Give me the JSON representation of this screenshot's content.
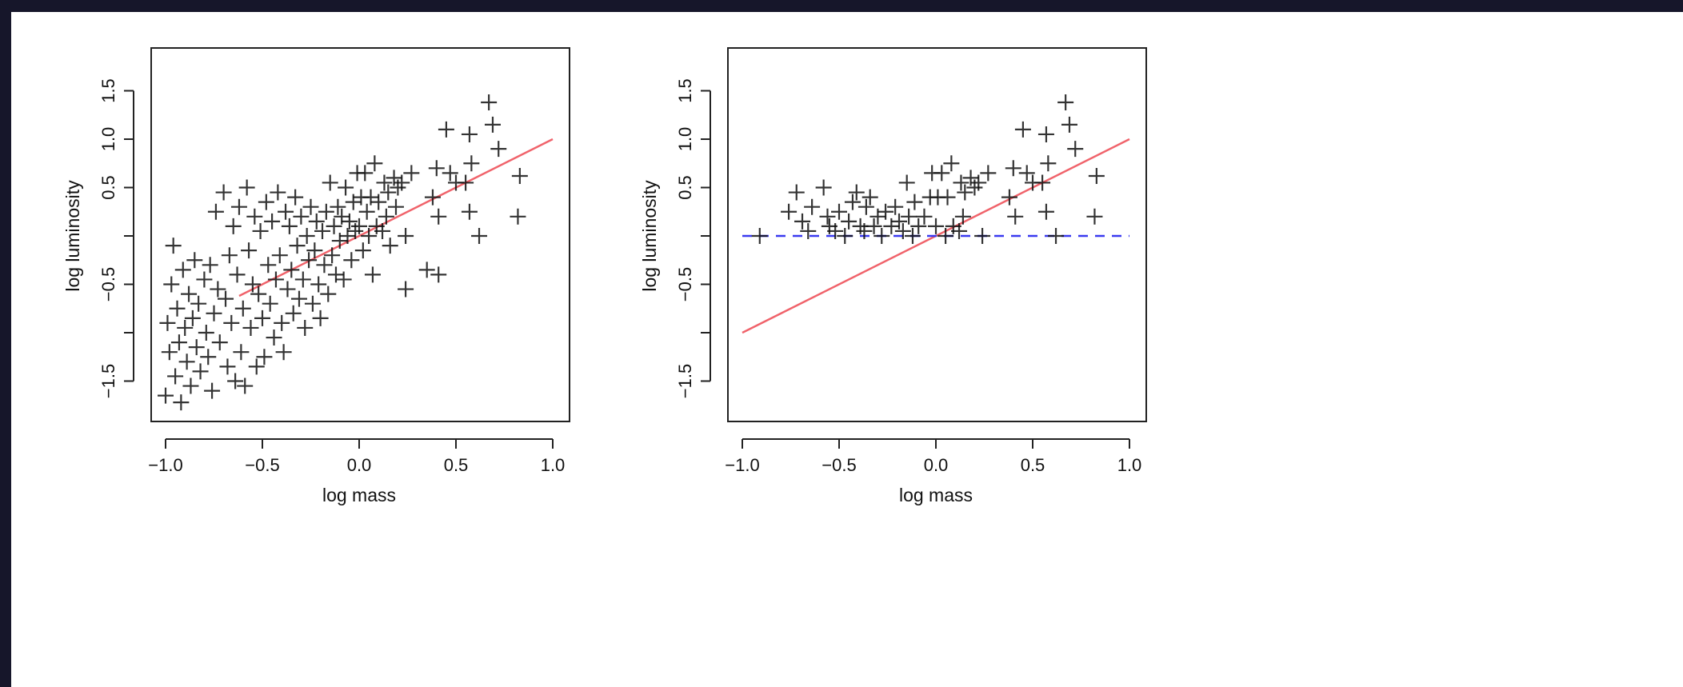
{
  "chart_data": [
    {
      "type": "scatter",
      "xlabel": "log mass",
      "ylabel": "log luminosity",
      "xlim": [
        -1.0,
        1.0
      ],
      "ylim": [
        -1.9,
        1.9
      ],
      "xticks": [
        -1.0,
        -0.5,
        0.0,
        0.5,
        1.0
      ],
      "xtick_labels": [
        "−1.0",
        "−0.5",
        "0.0",
        "0.5",
        "1.0"
      ],
      "yticks": [
        -1.5,
        -1.0,
        -0.5,
        0.0,
        0.5,
        1.0,
        1.5
      ],
      "ytick_labels": [
        "−1.5",
        "",
        "−0.5",
        "",
        "0.5",
        "1.0",
        "1.5"
      ],
      "grid": false,
      "marker": "+",
      "points": [
        [
          -1.0,
          -1.65
        ],
        [
          -0.98,
          -1.2
        ],
        [
          -0.99,
          -0.9
        ],
        [
          -0.97,
          -0.5
        ],
        [
          -0.96,
          -0.1
        ],
        [
          -0.95,
          -1.45
        ],
        [
          -0.94,
          -0.75
        ],
        [
          -0.93,
          -1.1
        ],
        [
          -0.92,
          -1.72
        ],
        [
          -0.91,
          -0.35
        ],
        [
          -0.9,
          -0.95
        ],
        [
          -0.89,
          -1.3
        ],
        [
          -0.88,
          -0.6
        ],
        [
          -0.87,
          -1.55
        ],
        [
          -0.86,
          -0.85
        ],
        [
          -0.85,
          -0.25
        ],
        [
          -0.84,
          -1.15
        ],
        [
          -0.83,
          -0.7
        ],
        [
          -0.82,
          -1.4
        ],
        [
          -0.8,
          -0.45
        ],
        [
          -0.79,
          -1.0
        ],
        [
          -0.78,
          -1.25
        ],
        [
          -0.77,
          -0.3
        ],
        [
          -0.76,
          -1.6
        ],
        [
          -0.75,
          -0.8
        ],
        [
          -0.74,
          0.25
        ],
        [
          -0.73,
          -0.55
        ],
        [
          -0.72,
          -1.1
        ],
        [
          -0.7,
          0.45
        ],
        [
          -0.69,
          -0.65
        ],
        [
          -0.68,
          -1.35
        ],
        [
          -0.67,
          -0.2
        ],
        [
          -0.66,
          -0.9
        ],
        [
          -0.65,
          0.1
        ],
        [
          -0.64,
          -1.5
        ],
        [
          -0.63,
          -0.4
        ],
        [
          -0.62,
          0.3
        ],
        [
          -0.61,
          -1.2
        ],
        [
          -0.6,
          -0.75
        ],
        [
          -0.59,
          -1.55
        ],
        [
          -0.58,
          0.5
        ],
        [
          -0.57,
          -0.15
        ],
        [
          -0.56,
          -0.95
        ],
        [
          -0.55,
          -0.5
        ],
        [
          -0.54,
          0.2
        ],
        [
          -0.53,
          -1.35
        ],
        [
          -0.52,
          -0.6
        ],
        [
          -0.51,
          0.05
        ],
        [
          -0.5,
          -0.85
        ],
        [
          -0.49,
          -1.25
        ],
        [
          -0.48,
          0.35
        ],
        [
          -0.47,
          -0.3
        ],
        [
          -0.46,
          -0.7
        ],
        [
          -0.45,
          0.15
        ],
        [
          -0.44,
          -1.05
        ],
        [
          -0.43,
          -0.45
        ],
        [
          -0.42,
          0.45
        ],
        [
          -0.41,
          -0.2
        ],
        [
          -0.4,
          -0.9
        ],
        [
          -0.39,
          -1.2
        ],
        [
          -0.38,
          0.25
        ],
        [
          -0.37,
          -0.55
        ],
        [
          -0.36,
          0.1
        ],
        [
          -0.35,
          -0.35
        ],
        [
          -0.34,
          -0.8
        ],
        [
          -0.33,
          0.4
        ],
        [
          -0.32,
          -0.1
        ],
        [
          -0.31,
          -0.65
        ],
        [
          -0.3,
          0.2
        ],
        [
          -0.29,
          -0.45
        ],
        [
          -0.28,
          -0.95
        ],
        [
          -0.27,
          0.0
        ],
        [
          -0.26,
          -0.25
        ],
        [
          -0.25,
          0.3
        ],
        [
          -0.24,
          -0.7
        ],
        [
          -0.23,
          -0.15
        ],
        [
          -0.22,
          0.15
        ],
        [
          -0.21,
          -0.5
        ],
        [
          -0.2,
          -0.85
        ],
        [
          -0.19,
          0.05
        ],
        [
          -0.18,
          -0.3
        ],
        [
          -0.17,
          0.25
        ],
        [
          -0.16,
          -0.6
        ],
        [
          -0.15,
          0.55
        ],
        [
          -0.14,
          -0.2
        ],
        [
          -0.13,
          0.1
        ],
        [
          -0.12,
          -0.4
        ],
        [
          -0.11,
          0.3
        ],
        [
          -0.1,
          -0.05
        ],
        [
          -0.09,
          0.2
        ],
        [
          -0.08,
          -0.45
        ],
        [
          -0.07,
          0.5
        ],
        [
          -0.06,
          0.0
        ],
        [
          -0.05,
          0.15
        ],
        [
          -0.04,
          -0.25
        ],
        [
          -0.03,
          0.35
        ],
        [
          -0.02,
          0.05
        ],
        [
          -0.01,
          0.65
        ],
        [
          0.0,
          0.1
        ],
        [
          0.01,
          0.4
        ],
        [
          0.02,
          -0.15
        ],
        [
          0.03,
          0.65
        ],
        [
          0.04,
          0.25
        ],
        [
          0.05,
          0.0
        ],
        [
          0.06,
          0.4
        ],
        [
          0.07,
          -0.4
        ],
        [
          0.08,
          0.75
        ],
        [
          0.09,
          0.1
        ],
        [
          0.1,
          0.35
        ],
        [
          0.12,
          0.05
        ],
        [
          0.13,
          0.55
        ],
        [
          0.14,
          0.2
        ],
        [
          0.15,
          0.45
        ],
        [
          0.16,
          -0.1
        ],
        [
          0.18,
          0.6
        ],
        [
          0.19,
          0.3
        ],
        [
          0.2,
          0.5
        ],
        [
          0.22,
          0.55
        ],
        [
          0.24,
          0.0
        ],
        [
          0.24,
          -0.55
        ],
        [
          0.27,
          0.65
        ],
        [
          0.35,
          -0.35
        ],
        [
          0.38,
          0.4
        ],
        [
          0.4,
          0.7
        ],
        [
          0.41,
          -0.4
        ],
        [
          0.41,
          0.2
        ],
        [
          0.45,
          1.1
        ],
        [
          0.47,
          0.65
        ],
        [
          0.5,
          0.55
        ],
        [
          0.55,
          0.55
        ],
        [
          0.57,
          1.05
        ],
        [
          0.57,
          0.25
        ],
        [
          0.58,
          0.75
        ],
        [
          0.62,
          0.0
        ],
        [
          0.67,
          1.38
        ],
        [
          0.69,
          1.15
        ],
        [
          0.72,
          0.9
        ],
        [
          0.82,
          0.2
        ],
        [
          0.83,
          0.62
        ]
      ],
      "lines": [
        {
          "color": "#f0636b",
          "style": "solid",
          "x": [
            -0.62,
            1.0
          ],
          "y": [
            -0.62,
            1.0
          ]
        }
      ]
    },
    {
      "type": "scatter",
      "xlabel": "log mass",
      "ylabel": "log luminosity",
      "xlim": [
        -1.0,
        1.0
      ],
      "ylim": [
        -1.9,
        1.9
      ],
      "xticks": [
        -1.0,
        -0.5,
        0.0,
        0.5,
        1.0
      ],
      "xtick_labels": [
        "−1.0",
        "−0.5",
        "0.0",
        "0.5",
        "1.0"
      ],
      "yticks": [
        -1.5,
        -1.0,
        -0.5,
        0.0,
        0.5,
        1.0,
        1.5
      ],
      "ytick_labels": [
        "−1.5",
        "",
        "−0.5",
        "",
        "0.5",
        "1.0",
        "1.5"
      ],
      "grid": false,
      "marker": "+",
      "points": [
        [
          -0.91,
          0.0
        ],
        [
          -0.76,
          0.25
        ],
        [
          -0.72,
          0.45
        ],
        [
          -0.69,
          0.15
        ],
        [
          -0.66,
          0.05
        ],
        [
          -0.64,
          0.3
        ],
        [
          -0.58,
          0.5
        ],
        [
          -0.56,
          0.2
        ],
        [
          -0.55,
          0.1
        ],
        [
          -0.52,
          0.05
        ],
        [
          -0.5,
          0.25
        ],
        [
          -0.47,
          0.0
        ],
        [
          -0.45,
          0.15
        ],
        [
          -0.43,
          0.35
        ],
        [
          -0.41,
          0.45
        ],
        [
          -0.39,
          0.1
        ],
        [
          -0.37,
          0.05
        ],
        [
          -0.36,
          0.3
        ],
        [
          -0.34,
          0.4
        ],
        [
          -0.32,
          0.1
        ],
        [
          -0.3,
          0.2
        ],
        [
          -0.28,
          0.0
        ],
        [
          -0.26,
          0.25
        ],
        [
          -0.23,
          0.1
        ],
        [
          -0.21,
          0.3
        ],
        [
          -0.19,
          0.15
        ],
        [
          -0.17,
          0.05
        ],
        [
          -0.15,
          0.55
        ],
        [
          -0.14,
          0.2
        ],
        [
          -0.12,
          0.0
        ],
        [
          -0.11,
          0.35
        ],
        [
          -0.09,
          0.1
        ],
        [
          -0.06,
          0.2
        ],
        [
          -0.03,
          0.4
        ],
        [
          -0.02,
          0.65
        ],
        [
          0.0,
          0.1
        ],
        [
          0.01,
          0.4
        ],
        [
          0.03,
          0.65
        ],
        [
          0.05,
          0.0
        ],
        [
          0.06,
          0.4
        ],
        [
          0.08,
          0.75
        ],
        [
          0.09,
          0.1
        ],
        [
          0.12,
          0.05
        ],
        [
          0.13,
          0.55
        ],
        [
          0.14,
          0.2
        ],
        [
          0.15,
          0.45
        ],
        [
          0.18,
          0.6
        ],
        [
          0.2,
          0.5
        ],
        [
          0.22,
          0.55
        ],
        [
          0.24,
          0.0
        ],
        [
          0.27,
          0.65
        ],
        [
          0.38,
          0.4
        ],
        [
          0.4,
          0.7
        ],
        [
          0.41,
          0.2
        ],
        [
          0.45,
          1.1
        ],
        [
          0.47,
          0.65
        ],
        [
          0.5,
          0.55
        ],
        [
          0.55,
          0.55
        ],
        [
          0.57,
          1.05
        ],
        [
          0.57,
          0.25
        ],
        [
          0.58,
          0.75
        ],
        [
          0.62,
          0.0
        ],
        [
          0.67,
          1.38
        ],
        [
          0.69,
          1.15
        ],
        [
          0.72,
          0.9
        ],
        [
          0.82,
          0.2
        ],
        [
          0.83,
          0.62
        ]
      ],
      "lines": [
        {
          "color": "#f0636b",
          "style": "solid",
          "x": [
            -1.0,
            1.0
          ],
          "y": [
            -1.0,
            1.0
          ]
        },
        {
          "color": "#3a3af0",
          "style": "dashed",
          "x": [
            -1.0,
            1.0
          ],
          "y": [
            0.0,
            0.0
          ]
        }
      ]
    }
  ]
}
